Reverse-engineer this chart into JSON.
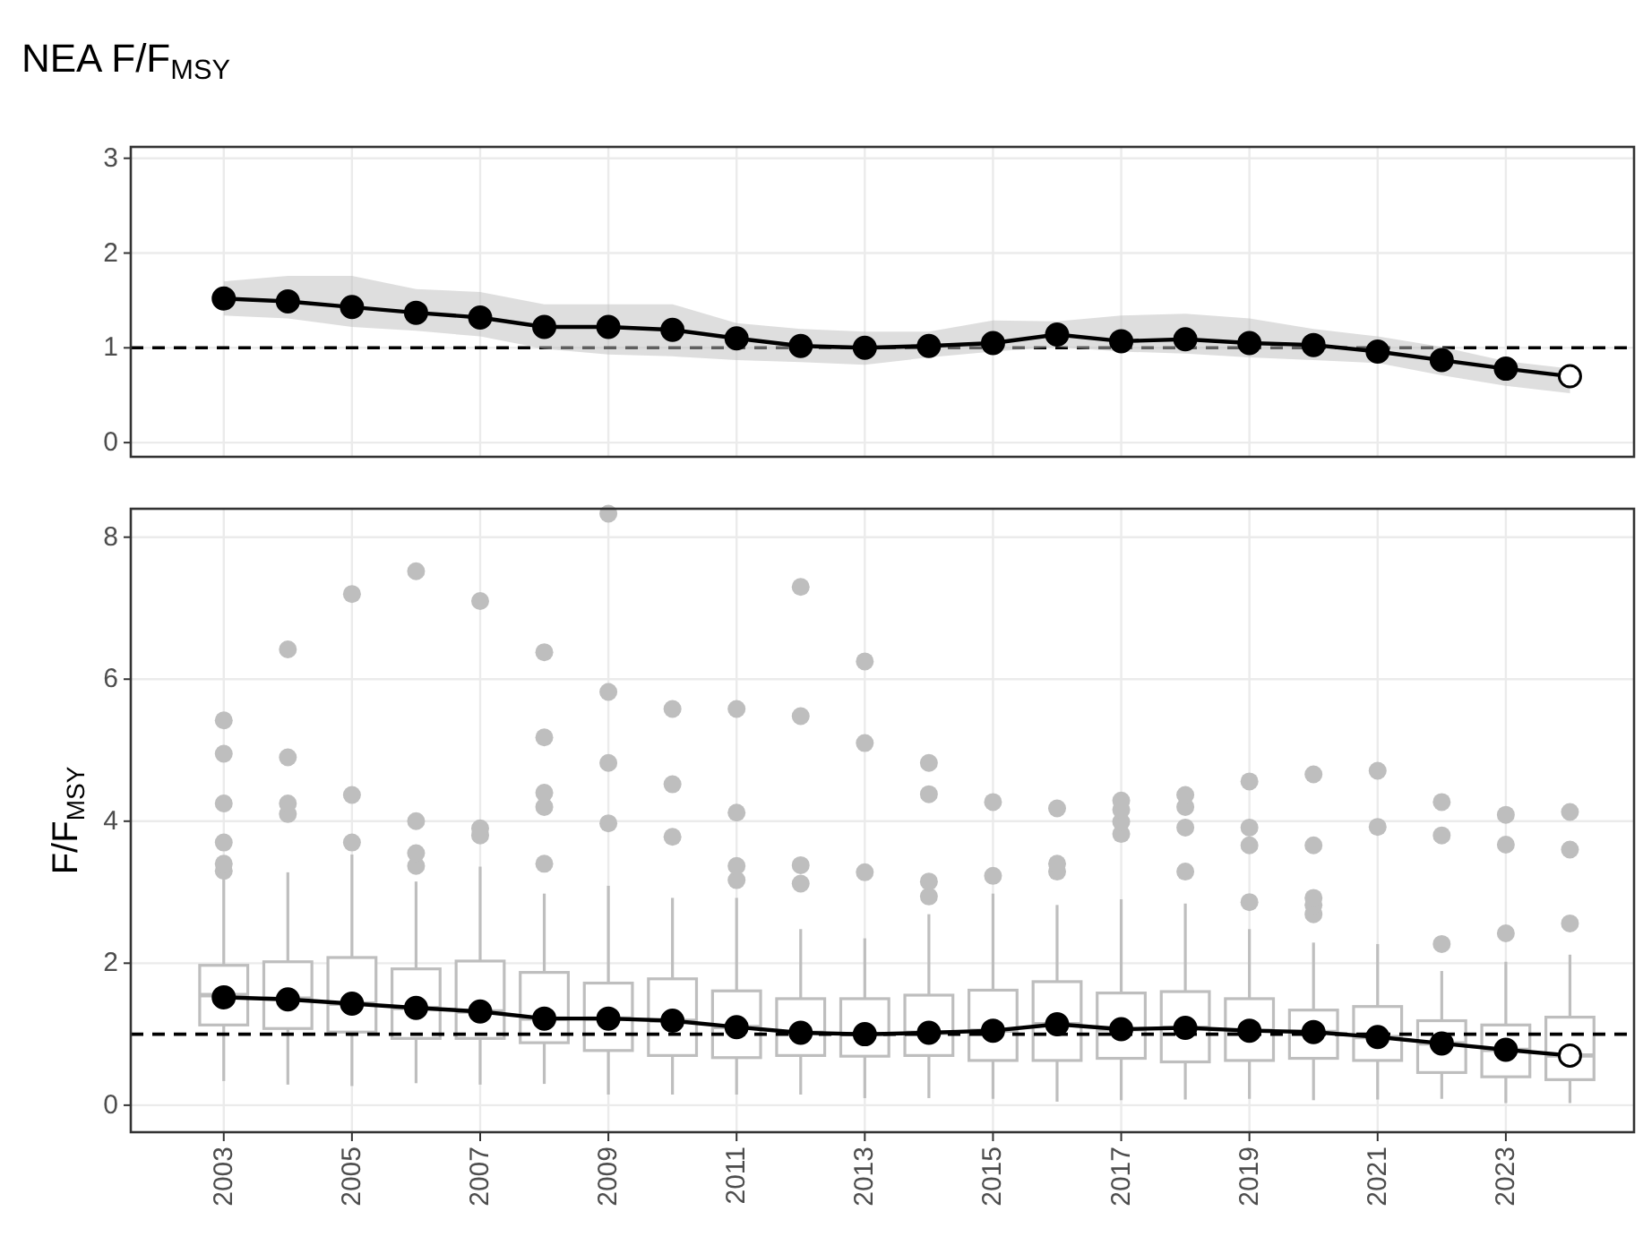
{
  "chart_data": [
    {
      "type": "line",
      "title": "NEA F/F$_{MSY}$",
      "x": [
        2003,
        2004,
        2005,
        2006,
        2007,
        2008,
        2009,
        2010,
        2011,
        2012,
        2013,
        2014,
        2015,
        2016,
        2017,
        2018,
        2019,
        2020,
        2021,
        2022,
        2023,
        2024
      ],
      "xlim": [
        2001.55,
        2025
      ],
      "xticks": [
        2003,
        2005,
        2007,
        2009,
        2011,
        2013,
        2015,
        2017,
        2019,
        2021,
        2023
      ],
      "ylim": [
        -0.15,
        3.12
      ],
      "yticks": [
        0,
        1,
        2,
        3
      ],
      "grid": true,
      "tick_labels": "y",
      "ref_lines": [
        {
          "axis": "y",
          "value": 1,
          "line_style": "dashed",
          "color": "#000000"
        }
      ],
      "series": [
        {
          "color": "#000000",
          "values": [
            1.52,
            1.49,
            1.43,
            1.37,
            1.32,
            1.22,
            1.22,
            1.19,
            1.1,
            1.02,
            1.0,
            1.02,
            1.05,
            1.14,
            1.07,
            1.09,
            1.05,
            1.03,
            0.96,
            0.87,
            0.78,
            0.7
          ],
          "lower": [
            1.34,
            1.31,
            1.22,
            1.18,
            1.12,
            0.99,
            0.93,
            0.91,
            0.87,
            0.85,
            0.82,
            0.9,
            0.96,
            1.01,
            0.96,
            0.94,
            0.9,
            0.87,
            0.84,
            0.71,
            0.6,
            0.52
          ],
          "upper": [
            1.7,
            1.76,
            1.76,
            1.62,
            1.59,
            1.46,
            1.46,
            1.46,
            1.26,
            1.2,
            1.17,
            1.17,
            1.29,
            1.28,
            1.34,
            1.36,
            1.31,
            1.2,
            1.12,
            1.01,
            0.86,
            0.78
          ]
        },
        {
          "type": "scatter",
          "color": "#000000",
          "marker": "circle",
          "values": [
            1.52,
            1.49,
            1.43,
            1.37,
            1.32,
            1.22,
            1.22,
            1.19,
            1.1,
            1.02,
            1.0,
            1.02,
            1.05,
            1.14,
            1.07,
            1.09,
            1.05,
            1.03,
            0.96,
            0.87,
            0.78,
            null
          ]
        },
        {
          "type": "scatter",
          "color": "#ffffff",
          "marker": "circle",
          "values": [
            null,
            null,
            null,
            null,
            null,
            null,
            null,
            null,
            null,
            null,
            null,
            null,
            null,
            null,
            null,
            null,
            null,
            null,
            null,
            null,
            null,
            0.7
          ]
        }
      ]
    },
    {
      "type": "box",
      "ylabel": "F/F$_{MSY}$",
      "x": [
        2003,
        2004,
        2005,
        2006,
        2007,
        2008,
        2009,
        2010,
        2011,
        2012,
        2013,
        2014,
        2015,
        2016,
        2017,
        2018,
        2019,
        2020,
        2021,
        2022,
        2023,
        2024
      ],
      "xlim": [
        2001.55,
        2025
      ],
      "xticks": [
        2003,
        2005,
        2007,
        2009,
        2011,
        2013,
        2015,
        2017,
        2019,
        2021,
        2023
      ],
      "ylim": [
        -0.38,
        8.4
      ],
      "yticks": [
        0,
        2,
        4,
        6,
        8
      ],
      "grid": true,
      "ref_lines": [
        {
          "axis": "y",
          "value": 1,
          "line_style": "dashed",
          "color": "#000000"
        }
      ],
      "series": [
        {
          "color": "#bebebe",
          "boxes": [
            {
              "low": 0.34,
              "q1": 1.13,
              "median": 1.55,
              "q3": 1.97,
              "high": 3.24,
              "outliers": [
                3.3,
                3.4,
                3.7,
                4.25,
                4.95,
                5.42
              ]
            },
            {
              "low": 0.29,
              "q1": 1.08,
              "median": 1.5,
              "q3": 2.02,
              "high": 3.28,
              "outliers": [
                4.1,
                4.25,
                4.9,
                6.42
              ]
            },
            {
              "low": 0.27,
              "q1": 1.03,
              "median": 1.43,
              "q3": 2.08,
              "high": 3.53,
              "outliers": [
                3.7,
                4.37,
                7.2
              ]
            },
            {
              "low": 0.31,
              "q1": 0.94,
              "median": 1.37,
              "q3": 1.92,
              "high": 3.15,
              "outliers": [
                3.37,
                3.55,
                4.0,
                7.52
              ]
            },
            {
              "low": 0.29,
              "q1": 0.94,
              "median": 1.32,
              "q3": 2.03,
              "high": 3.36,
              "outliers": [
                3.8,
                3.9,
                7.1
              ]
            },
            {
              "low": 0.3,
              "q1": 0.88,
              "median": 1.22,
              "q3": 1.87,
              "high": 2.98,
              "outliers": [
                3.4,
                4.2,
                4.4,
                5.18,
                6.38
              ]
            },
            {
              "low": 0.15,
              "q1": 0.77,
              "median": 1.22,
              "q3": 1.72,
              "high": 3.09,
              "outliers": [
                3.97,
                4.82,
                5.82,
                8.33
              ]
            },
            {
              "low": 0.15,
              "q1": 0.7,
              "median": 1.19,
              "q3": 1.78,
              "high": 2.92,
              "outliers": [
                3.78,
                4.52,
                5.58
              ]
            },
            {
              "low": 0.15,
              "q1": 0.67,
              "median": 1.1,
              "q3": 1.61,
              "high": 2.92,
              "outliers": [
                3.17,
                3.37,
                4.12,
                5.58
              ]
            },
            {
              "low": 0.15,
              "q1": 0.7,
              "median": 1.02,
              "q3": 1.5,
              "high": 2.48,
              "outliers": [
                3.12,
                3.38,
                5.48,
                7.3
              ]
            },
            {
              "low": 0.1,
              "q1": 0.69,
              "median": 1.0,
              "q3": 1.5,
              "high": 2.35,
              "outliers": [
                3.28,
                5.1,
                6.25
              ]
            },
            {
              "low": 0.1,
              "q1": 0.7,
              "median": 1.02,
              "q3": 1.55,
              "high": 2.69,
              "outliers": [
                2.94,
                3.15,
                4.38,
                4.82
              ]
            },
            {
              "low": 0.09,
              "q1": 0.63,
              "median": 1.05,
              "q3": 1.62,
              "high": 2.98,
              "outliers": [
                3.23,
                4.27
              ]
            },
            {
              "low": 0.05,
              "q1": 0.63,
              "median": 1.14,
              "q3": 1.74,
              "high": 2.82,
              "outliers": [
                3.29,
                3.4,
                4.18
              ]
            },
            {
              "low": 0.07,
              "q1": 0.66,
              "median": 1.07,
              "q3": 1.58,
              "high": 2.9,
              "outliers": [
                3.82,
                3.99,
                4.16,
                4.29
              ]
            },
            {
              "low": 0.08,
              "q1": 0.61,
              "median": 1.09,
              "q3": 1.6,
              "high": 2.84,
              "outliers": [
                3.29,
                3.91,
                4.2,
                4.37
              ]
            },
            {
              "low": 0.09,
              "q1": 0.63,
              "median": 1.05,
              "q3": 1.5,
              "high": 2.48,
              "outliers": [
                2.86,
                3.66,
                3.91,
                4.56
              ]
            },
            {
              "low": 0.07,
              "q1": 0.66,
              "median": 1.03,
              "q3": 1.34,
              "high": 2.29,
              "outliers": [
                2.69,
                2.82,
                2.92,
                3.66,
                4.66
              ]
            },
            {
              "low": 0.08,
              "q1": 0.63,
              "median": 0.96,
              "q3": 1.39,
              "high": 2.27,
              "outliers": [
                3.92,
                4.71
              ]
            },
            {
              "low": 0.09,
              "q1": 0.46,
              "median": 0.87,
              "q3": 1.19,
              "high": 1.89,
              "outliers": [
                2.27,
                3.8,
                4.27
              ]
            },
            {
              "low": 0.03,
              "q1": 0.4,
              "median": 0.78,
              "q3": 1.13,
              "high": 2.02,
              "outliers": [
                2.42,
                3.67,
                4.09
              ]
            },
            {
              "low": 0.03,
              "q1": 0.36,
              "median": 0.7,
              "q3": 1.24,
              "high": 2.12,
              "outliers": [
                2.56,
                3.6,
                4.13
              ]
            }
          ]
        },
        {
          "type": "line",
          "color": "#000000",
          "values": [
            1.52,
            1.49,
            1.43,
            1.37,
            1.32,
            1.22,
            1.22,
            1.19,
            1.1,
            1.02,
            1.0,
            1.02,
            1.05,
            1.14,
            1.07,
            1.09,
            1.05,
            1.03,
            0.96,
            0.87,
            0.78,
            0.7
          ]
        },
        {
          "type": "scatter",
          "color": "#000000",
          "marker": "circle",
          "values": [
            1.52,
            1.49,
            1.43,
            1.37,
            1.32,
            1.22,
            1.22,
            1.19,
            1.1,
            1.02,
            1.0,
            1.02,
            1.05,
            1.14,
            1.07,
            1.09,
            1.05,
            1.03,
            0.96,
            0.87,
            0.78,
            null
          ]
        },
        {
          "type": "scatter",
          "color": "#ffffff",
          "marker": "circle",
          "values": [
            null,
            null,
            null,
            null,
            null,
            null,
            null,
            null,
            null,
            null,
            null,
            null,
            null,
            null,
            null,
            null,
            null,
            null,
            null,
            null,
            null,
            0.7
          ]
        }
      ]
    }
  ]
}
